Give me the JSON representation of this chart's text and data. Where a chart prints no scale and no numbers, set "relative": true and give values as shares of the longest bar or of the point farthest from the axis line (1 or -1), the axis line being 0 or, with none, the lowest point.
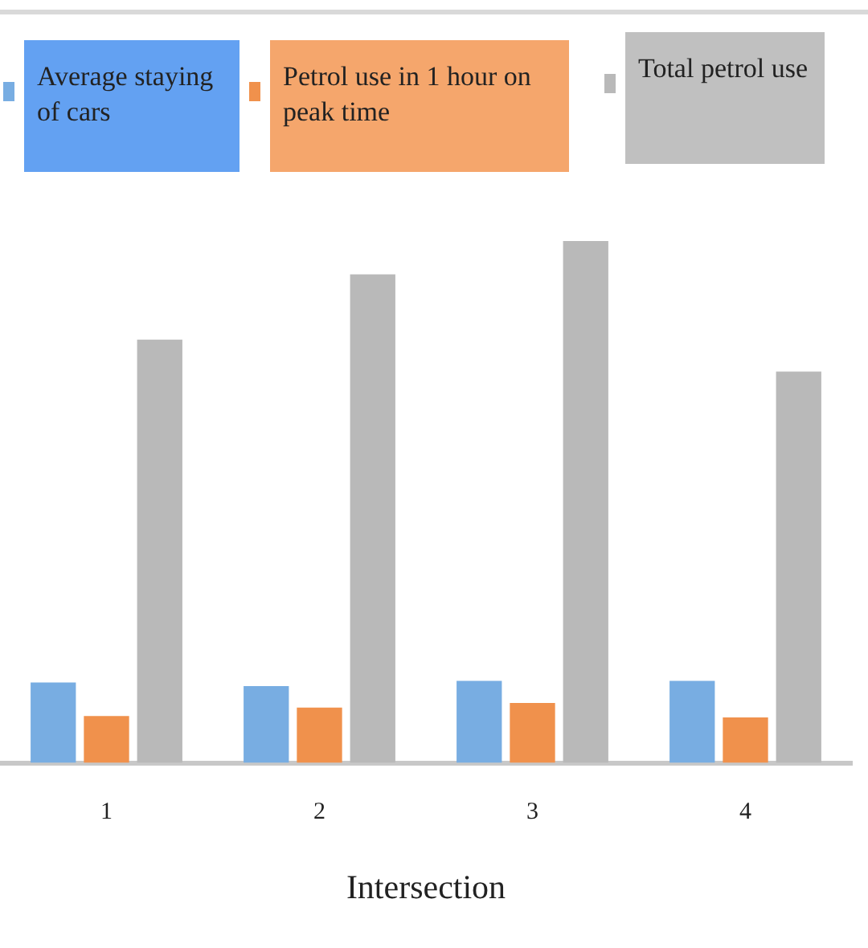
{
  "chart_data": {
    "type": "bar",
    "xlabel": "Intersection",
    "categories": [
      "1",
      "2",
      "3",
      "4"
    ],
    "relative": true,
    "legend": "top",
    "grid": false,
    "series": [
      {
        "name": "Average staying of cars",
        "color": "#78ade2",
        "values": [
          0.154,
          0.147,
          0.157,
          0.157
        ]
      },
      {
        "name": "Petrol use in 1 hour on peak time",
        "color": "#f0914c",
        "values": [
          0.09,
          0.106,
          0.115,
          0.087
        ]
      },
      {
        "name": "Total petrol use",
        "color": "#b9b9b9",
        "values": [
          0.811,
          0.936,
          1,
          0.75
        ]
      }
    ]
  }
}
